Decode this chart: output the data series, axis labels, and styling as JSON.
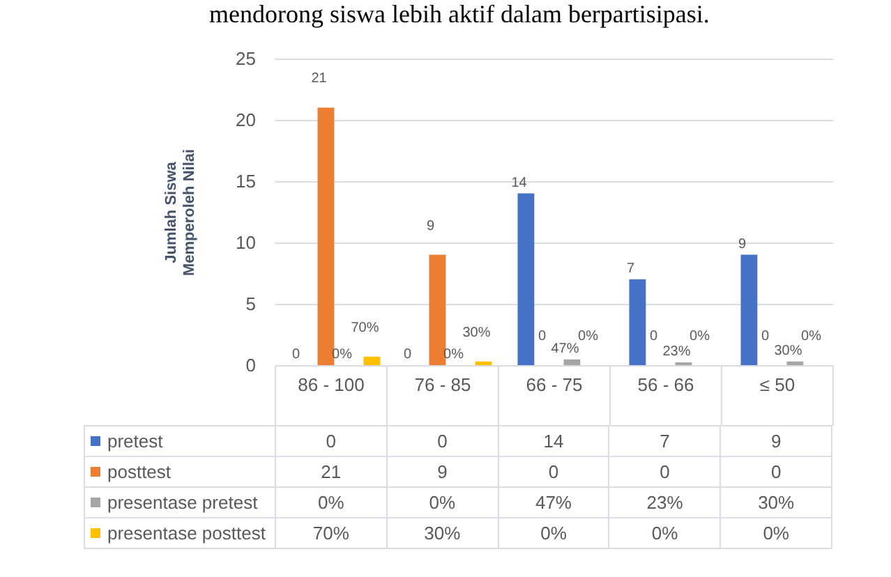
{
  "chart_data": {
    "type": "bar",
    "annotations": [
      "mendorong siswa lebih aktif dalam berpartisipasi."
    ],
    "ylabel": "Jumlah Siswa Memperoleh Nilai",
    "categories": [
      "86 - 100",
      "76 - 85",
      "66 - 75",
      "56 - 66",
      "≤ 50"
    ],
    "series": [
      {
        "name": "pretest",
        "color": "#4472c4",
        "values": [
          0,
          0,
          14,
          7,
          9
        ],
        "value_labels": [
          "0",
          "0",
          "14",
          "7",
          "9"
        ]
      },
      {
        "name": "posttest",
        "color": "#ed7d31",
        "values": [
          21,
          9,
          0,
          0,
          0
        ],
        "value_labels": [
          "21",
          "9",
          "0",
          "0",
          "0"
        ]
      },
      {
        "name": "presentase pretest",
        "color": "#a5a5a5",
        "values": [
          0,
          0,
          0.47,
          0.23,
          0.3
        ],
        "value_labels": [
          "0%",
          "0%",
          "47%",
          "23%",
          "30%"
        ]
      },
      {
        "name": "presentase posttest",
        "color": "#ffc000",
        "values": [
          0.7,
          0.3,
          0,
          0,
          0
        ],
        "value_labels": [
          "70%",
          "30%",
          "0%",
          "0%",
          "0%"
        ]
      }
    ],
    "ylim": [
      0,
      25
    ],
    "yticks": [
      0,
      5,
      10,
      15,
      20,
      25
    ],
    "grid": "y",
    "legend": "bottom"
  }
}
